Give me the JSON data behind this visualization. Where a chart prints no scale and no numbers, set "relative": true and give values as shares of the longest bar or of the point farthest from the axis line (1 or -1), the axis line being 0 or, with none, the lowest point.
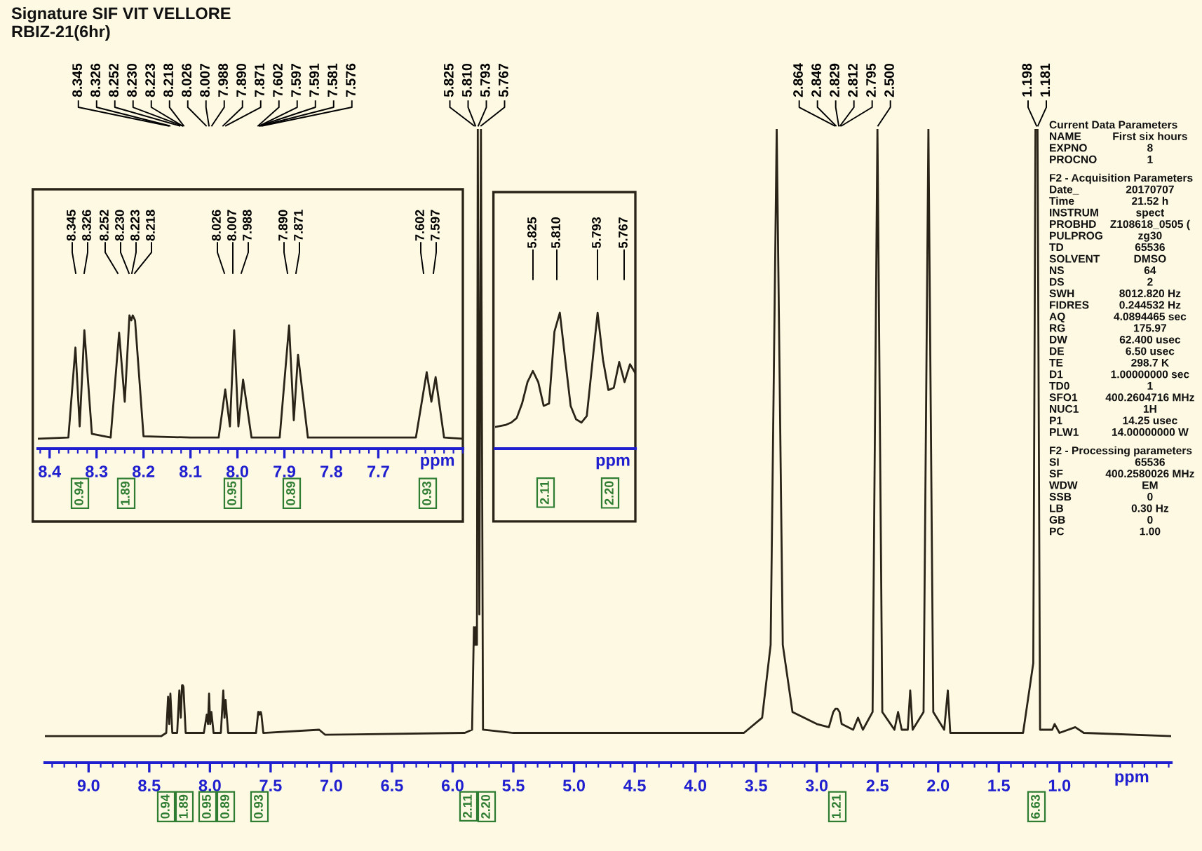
{
  "chart_data": [
    {
      "type": "line",
      "title": "Signature SIF VIT VELLORE",
      "subtitle": "RBIZ-21(6hr)",
      "xlabel": "ppm",
      "relative": true,
      "color": "#2a2418",
      "tick_labels": "x",
      "xlim": [
        9.36,
        0.08
      ],
      "xticks": [
        {
          "value": 9,
          "label": "9.0"
        },
        8.5,
        {
          "value": 8,
          "label": "8.0"
        },
        7.5,
        {
          "value": 7,
          "label": "7.0"
        },
        6.5,
        {
          "value": 6,
          "label": "6.0"
        },
        5.5,
        {
          "value": 5,
          "label": "5.0"
        },
        4.5,
        {
          "value": 4,
          "label": "4.0"
        },
        3.5,
        {
          "value": 3,
          "label": "3.0"
        },
        2.5,
        {
          "value": 2,
          "label": "2.0"
        },
        1.5,
        {
          "value": 1,
          "label": "1.0"
        }
      ],
      "x": [
        9.36,
        8.4,
        8.36,
        8.345,
        8.335,
        8.326,
        8.31,
        8.27,
        8.252,
        8.24,
        8.23,
        8.223,
        8.218,
        8.2,
        8.05,
        8.026,
        8.016,
        8.007,
        7.998,
        7.988,
        7.97,
        7.91,
        7.89,
        7.88,
        7.871,
        7.85,
        7.62,
        7.602,
        7.6,
        7.597,
        7.591,
        7.581,
        7.576,
        7.56,
        7.1,
        7.05,
        5.9,
        5.84,
        5.825,
        5.815,
        5.81,
        5.8,
        5.793,
        5.78,
        5.767,
        5.75,
        5.5,
        4.35,
        3.6,
        3.45,
        3.38,
        3.33,
        3.28,
        3.2,
        3.0,
        2.9,
        2.864,
        2.846,
        2.829,
        2.812,
        2.795,
        2.7,
        2.66,
        2.62,
        2.54,
        2.5,
        2.46,
        2.36,
        2.33,
        2.3,
        2.25,
        2.23,
        2.21,
        2.12,
        2.08,
        2.04,
        1.95,
        1.92,
        1.9,
        1.3,
        1.216,
        1.198,
        1.181,
        1.16,
        1.06,
        1.04,
        1.0,
        0.87,
        0.8,
        0.08
      ],
      "values": [
        0.042,
        0.042,
        0.047,
        0.104,
        0.061,
        0.109,
        0.047,
        0.047,
        0.114,
        0.071,
        0.122,
        0.122,
        0.119,
        0.047,
        0.047,
        0.076,
        0.061,
        0.109,
        0.061,
        0.08,
        0.047,
        0.047,
        0.114,
        0.071,
        0.099,
        0.047,
        0.047,
        0.08,
        0.076,
        0.08,
        0.076,
        0.08,
        0.076,
        0.047,
        0.052,
        0.044,
        0.047,
        0.052,
        0.214,
        0.186,
        0.214,
        0.186,
        1.0,
        0.234,
        1.0,
        0.052,
        0.047,
        0.047,
        0.047,
        0.071,
        0.186,
        1.0,
        0.186,
        0.08,
        0.061,
        0.056,
        0.08,
        0.085,
        0.085,
        0.08,
        0.061,
        0.052,
        0.071,
        0.052,
        0.08,
        1.0,
        0.08,
        0.052,
        0.08,
        0.052,
        0.052,
        0.114,
        0.052,
        0.08,
        1.0,
        0.08,
        0.052,
        0.114,
        0.047,
        0.047,
        0.157,
        1.0,
        1.0,
        0.052,
        0.052,
        0.061,
        0.047,
        0.056,
        0.047,
        0.042
      ],
      "annotations": [
        "8.345",
        "8.326",
        "8.252",
        "8.230",
        "8.223",
        "8.218",
        "8.026",
        "8.007",
        "7.988",
        "7.890",
        "7.871",
        "7.602",
        "7.597",
        "7.591",
        "7.581",
        "7.576",
        "5.825",
        "5.810",
        "5.793",
        "5.767",
        "2.864",
        "2.846",
        "2.829",
        "2.812",
        "2.795",
        "2.500",
        "1.198",
        "1.181",
        "0.94",
        "1.89",
        "0.95",
        "0.89",
        "0.93",
        "2.11",
        "2.20",
        "1.21",
        "6.63"
      ]
    },
    {
      "type": "line",
      "xlabel": "ppm",
      "relative": true,
      "color": "#2a2418",
      "tick_labels": "x",
      "xlim": [
        8.425,
        7.52
      ],
      "xticks": [
        8.4,
        8.3,
        8.2,
        8.1,
        {
          "value": 8,
          "label": "8.0"
        },
        7.9,
        7.8,
        7.7
      ],
      "x": [
        8.425,
        8.36,
        8.345,
        8.336,
        8.326,
        8.31,
        8.27,
        8.252,
        8.24,
        8.23,
        8.226,
        8.223,
        8.218,
        8.2,
        8.1,
        8.04,
        8.026,
        8.016,
        8.007,
        7.998,
        7.988,
        7.97,
        7.91,
        7.89,
        7.88,
        7.871,
        7.85,
        7.62,
        7.597,
        7.587,
        7.578,
        7.56,
        7.52
      ],
      "values": [
        0.074,
        0.083,
        0.759,
        0.167,
        0.889,
        0.111,
        0.083,
        0.87,
        0.352,
        1.0,
        0.963,
        1.0,
        0.963,
        0.093,
        0.083,
        0.083,
        0.444,
        0.167,
        0.889,
        0.167,
        0.518,
        0.083,
        0.083,
        0.926,
        0.213,
        0.704,
        0.083,
        0.083,
        0.574,
        0.352,
        0.537,
        0.083,
        0.074
      ],
      "annotations": [
        "8.345",
        "8.326",
        "8.252",
        "8.230",
        "8.223",
        "8.218",
        "8.026",
        "8.007",
        "7.988",
        "7.890",
        "7.871",
        "7.602",
        "7.597",
        "0.94",
        "1.89",
        "0.95",
        "0.89",
        "0.93"
      ]
    },
    {
      "type": "line",
      "xlabel": "ppm",
      "relative": true,
      "color": "#2a2418",
      "categories": [
        null,
        null,
        null,
        null,
        null,
        null,
        null,
        null,
        null,
        null,
        null,
        null,
        null,
        null,
        null,
        null,
        null,
        null,
        null,
        null,
        null,
        null,
        null,
        null,
        null,
        null,
        null
      ],
      "values": [
        0.159,
        0.167,
        0.175,
        0.192,
        0.225,
        0.332,
        0.489,
        0.571,
        0.489,
        0.315,
        0.332,
        0.86,
        1.0,
        0.654,
        0.315,
        0.216,
        0.192,
        0.241,
        0.621,
        1.0,
        0.654,
        0.431,
        0.447,
        0.637,
        0.489,
        0.621,
        0.555
      ],
      "annotations": [
        "5.825",
        "5.810",
        "5.793",
        "5.767",
        "2.11",
        "2.20"
      ]
    },
    {
      "type": "other",
      "annotations": [
        "Current Data Parameters",
        "NAME\tFirst six hours",
        "EXPNO\t8",
        "PROCNO\t1",
        "F2 - Acquisition Parameters",
        "Date_\t20170707",
        "Time\t21.52 h",
        "INSTRUM\tspect",
        "PROBHD\tZ108618_0505 (",
        "PULPROG\tzg30",
        "TD\t65536",
        "SOLVENT\tDMSO",
        "NS\t64",
        "DS\t2",
        "SWH\t8012.820 Hz",
        "FIDRES\t0.244532 Hz",
        "AQ\t4.0894465 sec",
        "RG\t175.97",
        "DW\t62.400 usec",
        "DE\t6.50 usec",
        "TE\t298.7 K",
        "D1\t1.00000000 sec",
        "TD0\t1",
        "SFO1\t400.2604716 MHz",
        "NUC1\t1H",
        "P1\t14.25 usec",
        "PLW1\t14.00000000 W",
        "F2 - Processing parameters",
        "SI\t65536",
        "SF\t400.2580026 MHz",
        "WDW\tEM",
        "SSB\t0",
        "LB\t0.30 Hz",
        "GB\t0",
        "PC\t1.00"
      ]
    }
  ]
}
